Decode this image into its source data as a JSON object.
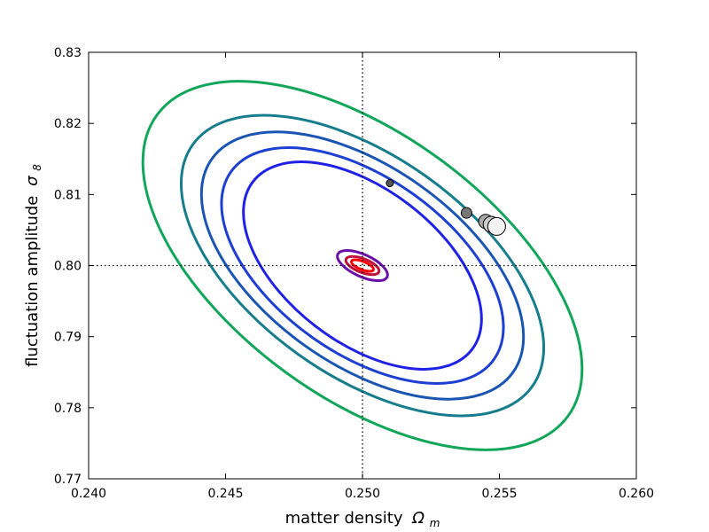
{
  "chart_data": {
    "type": "scatter",
    "xlabel": "matter density",
    "xlabel_symbol": "Ω",
    "xlabel_sub": "m",
    "ylabel": "fluctuation amplitude",
    "ylabel_symbol": "σ",
    "ylabel_sub": "8",
    "xlim": [
      0.24,
      0.26
    ],
    "ylim": [
      0.77,
      0.83
    ],
    "x_ticks": [
      "0.240",
      "0.245",
      "0.250",
      "0.255",
      "0.260"
    ],
    "y_ticks": [
      "0.77",
      "0.78",
      "0.79",
      "0.80",
      "0.81",
      "0.82",
      "0.83"
    ],
    "grid": false,
    "reference_lines": {
      "x": 0.25,
      "y": 0.8,
      "style": "dotted"
    },
    "contours": [
      {
        "color": "#12a65b",
        "center": [
          0.25,
          0.8
        ],
        "tips": [
          [
            0.2425,
            0.8212
          ],
          [
            0.2575,
            0.7788
          ]
        ],
        "half_width": 0.0048
      },
      {
        "color": "#167d8c",
        "center": [
          0.25,
          0.8
        ],
        "tips": [
          [
            0.2438,
            0.817
          ],
          [
            0.2562,
            0.783
          ]
        ],
        "half_width": 0.004
      },
      {
        "color": "#1a55b4",
        "center": [
          0.25,
          0.8
        ],
        "tips": [
          [
            0.2445,
            0.815
          ],
          [
            0.2555,
            0.785
          ]
        ],
        "half_width": 0.0036
      },
      {
        "color": "#1d3fd4",
        "center": [
          0.25,
          0.8
        ],
        "tips": [
          [
            0.2452,
            0.8132
          ],
          [
            0.2548,
            0.7868
          ]
        ],
        "half_width": 0.0032
      },
      {
        "color": "#1f22e6",
        "center": [
          0.25,
          0.8
        ],
        "tips": [
          [
            0.246,
            0.8118
          ],
          [
            0.254,
            0.7882
          ]
        ],
        "half_width": 0.0028
      },
      {
        "color": "#6a10a8",
        "center": [
          0.25,
          0.8
        ],
        "tips": [
          [
            0.2491,
            0.8016
          ],
          [
            0.2509,
            0.7984
          ]
        ],
        "half_width": 0.0004
      },
      {
        "color": "#c0103a",
        "center": [
          0.25,
          0.8
        ],
        "tips": [
          [
            0.2494,
            0.8009
          ],
          [
            0.2506,
            0.7991
          ]
        ],
        "half_width": 0.00025
      },
      {
        "color": "#ff0000",
        "center": [
          0.25,
          0.8
        ],
        "tips": [
          [
            0.2496,
            0.8006
          ],
          [
            0.2504,
            0.7994
          ]
        ],
        "half_width": 0.00015
      }
    ],
    "markers": [
      {
        "x": 0.251,
        "y": 0.8116,
        "size": 4,
        "fill": "#555555"
      },
      {
        "x": 0.2538,
        "y": 0.8074,
        "size": 6,
        "fill": "#777777"
      },
      {
        "x": 0.2545,
        "y": 0.8062,
        "size": 8,
        "fill": "#aaaaaa"
      },
      {
        "x": 0.2547,
        "y": 0.8058,
        "size": 9,
        "fill": "#cccccc"
      },
      {
        "x": 0.2549,
        "y": 0.8055,
        "size": 10,
        "fill": "#f2f2f2"
      }
    ]
  }
}
